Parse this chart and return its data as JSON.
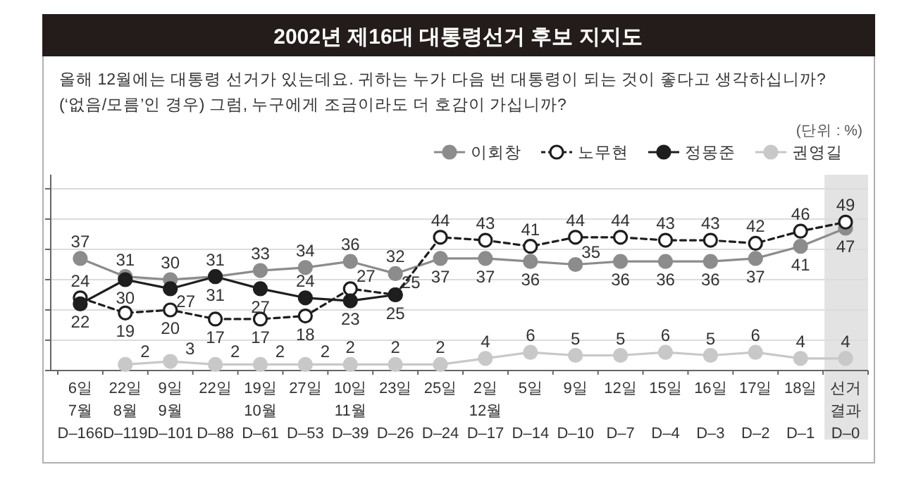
{
  "chart_data": {
    "type": "line",
    "title": "2002년 제16대 대통령선거 후보 지지도",
    "subtitle": "올해 12월에는 대통령 선거가 있는데요. 귀하는 누가 다음 번 대통령이 되는 것이 좋다고 생각하십니까?\n(‘없음/모름’인 경우) 그럼, 누구에게 조금이라도 더 호감이 가십니까?",
    "annotations": [
      "(단위 : %)"
    ],
    "categories": [
      "6일\n7월\nD–166",
      "22일\n8월\nD–119",
      "9일\n9월\nD–101",
      "22일\nD–88",
      "19일\n10월\nD–61",
      "27일\nD–53",
      "10일\n11월\nD–39",
      "23일\nD–26",
      "25일\nD–24",
      "2일\n12월\nD–17",
      "5일\nD–14",
      "9일\nD–10",
      "12일\nD–7",
      "15일\nD–4",
      "16일\nD–3",
      "17일\nD–2",
      "18일\nD–1",
      "선거\n결과\nD–0"
    ],
    "series": [
      {
        "name": "이회창",
        "color": "#8c8c8c",
        "marker": "circle",
        "line_style": "solid",
        "values": [
          37,
          31,
          30,
          31,
          33,
          34,
          36,
          32,
          37,
          37,
          36,
          35,
          36,
          36,
          36,
          37,
          41,
          47
        ]
      },
      {
        "name": "노무현",
        "color": "#1e1e1e",
        "marker": "circle",
        "line_style": "dashed",
        "values": [
          24,
          19,
          20,
          17,
          17,
          18,
          27,
          25,
          44,
          43,
          41,
          44,
          44,
          43,
          43,
          42,
          46,
          49
        ]
      },
      {
        "name": "정몽준",
        "color": "#1e1e1e",
        "marker": "circle",
        "line_style": "solid",
        "values": [
          22,
          30,
          27,
          31,
          27,
          24,
          23,
          25,
          null,
          null,
          null,
          null,
          null,
          null,
          null,
          null,
          null,
          null
        ]
      },
      {
        "name": "권영길",
        "color": "#c8c8c8",
        "marker": "circle",
        "line_style": "solid",
        "values": [
          null,
          2,
          3,
          2,
          2,
          2,
          2,
          2,
          2,
          4,
          6,
          5,
          5,
          6,
          5,
          6,
          4,
          4
        ]
      }
    ],
    "ylim": [
      0,
      60
    ],
    "yticks": [
      {
        "value": 0,
        "label": null
      },
      {
        "value": 10,
        "label": null
      },
      {
        "value": 20,
        "label": null
      },
      {
        "value": 30,
        "label": null
      },
      {
        "value": 40,
        "label": null
      },
      {
        "value": 50,
        "label": null
      },
      {
        "value": 60,
        "label": null
      }
    ],
    "tick_labels": "x",
    "grid": "y",
    "legend": "top right",
    "data_labels": true,
    "bands": [
      {
        "axis": "x",
        "from": "선거\n결과\nD–0",
        "to": "선거\n결과\nD–0",
        "label": null,
        "color": "#e3e3e3"
      }
    ]
  }
}
